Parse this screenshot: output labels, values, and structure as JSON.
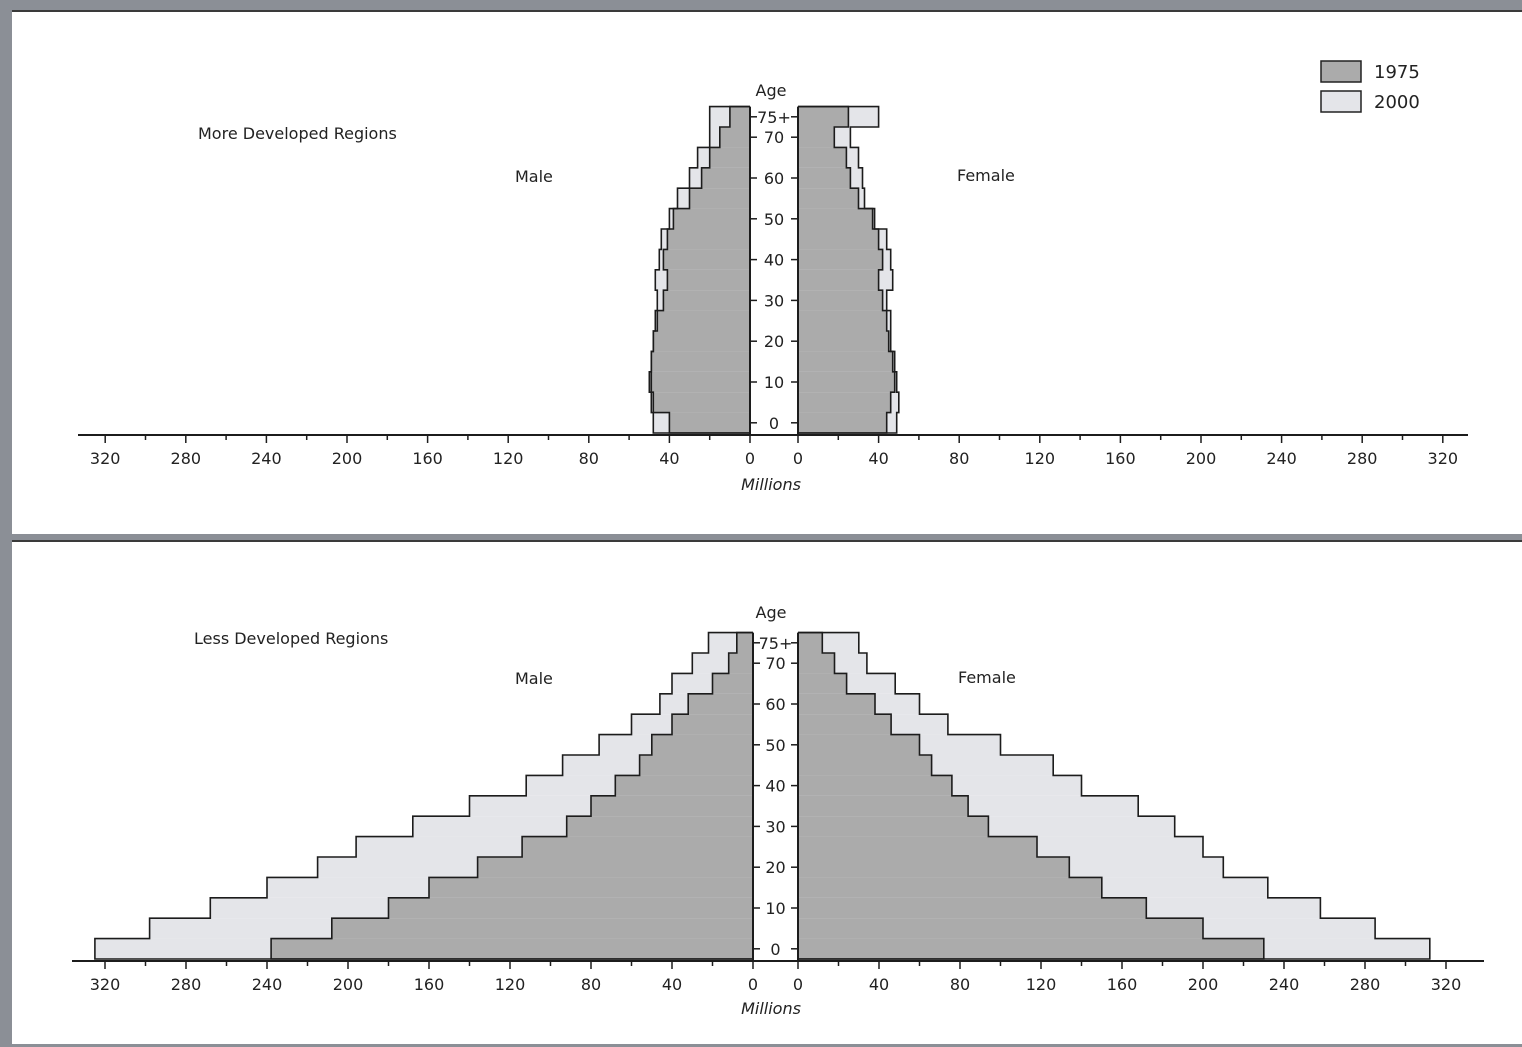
{
  "legend": [
    {
      "label": "1975",
      "color": "#ababab"
    },
    {
      "label": "2000",
      "color": "#e4e5e9"
    }
  ],
  "chart_data": [
    {
      "type": "bar",
      "subtype": "population-pyramid",
      "title": "More Developed Regions",
      "left_label": "Male",
      "right_label": "Female",
      "age_label": "Age",
      "xlabel": "Millions",
      "age_ticks": [
        "0",
        "10",
        "20",
        "30",
        "40",
        "50",
        "60",
        "70",
        "75+"
      ],
      "categories": [
        "0-4",
        "5-9",
        "10-14",
        "15-19",
        "20-24",
        "25-29",
        "30-34",
        "35-39",
        "40-44",
        "45-49",
        "50-54",
        "55-59",
        "60-64",
        "65-69",
        "70-74",
        "75+"
      ],
      "x_ticks": [
        320,
        280,
        240,
        200,
        160,
        120,
        80,
        40,
        0
      ],
      "xlim": [
        0,
        330
      ],
      "series": [
        {
          "name": "1975",
          "color": "#ababab",
          "male": [
            40,
            48,
            50,
            49,
            48,
            46,
            43,
            41,
            43,
            41,
            38,
            30,
            24,
            20,
            15,
            10
          ],
          "female": [
            44,
            46,
            48,
            47,
            45,
            44,
            42,
            40,
            42,
            40,
            37,
            30,
            26,
            24,
            18,
            25
          ]
        },
        {
          "name": "2000",
          "color": "#e4e5e9",
          "male": [
            48,
            49,
            49,
            49,
            48,
            47,
            46,
            47,
            45,
            44,
            40,
            36,
            30,
            26,
            20,
            20
          ],
          "female": [
            49,
            50,
            49,
            48,
            46,
            46,
            44,
            47,
            46,
            44,
            38,
            33,
            32,
            30,
            26,
            40
          ]
        }
      ]
    },
    {
      "type": "bar",
      "subtype": "population-pyramid",
      "title": "Less Developed Regions",
      "left_label": "Male",
      "right_label": "Female",
      "age_label": "Age",
      "xlabel": "Millions",
      "age_ticks": [
        "0",
        "10",
        "20",
        "30",
        "40",
        "50",
        "60",
        "70",
        "75+"
      ],
      "categories": [
        "0-4",
        "5-9",
        "10-14",
        "15-19",
        "20-24",
        "25-29",
        "30-34",
        "35-39",
        "40-44",
        "45-49",
        "50-54",
        "55-59",
        "60-64",
        "65-69",
        "70-74",
        "75+"
      ],
      "x_ticks": [
        320,
        280,
        240,
        200,
        160,
        120,
        80,
        40,
        0
      ],
      "xlim": [
        0,
        330
      ],
      "series": [
        {
          "name": "1975",
          "color": "#ababab",
          "male": [
            238,
            208,
            180,
            160,
            136,
            114,
            92,
            80,
            68,
            56,
            50,
            40,
            32,
            20,
            12,
            8
          ],
          "female": [
            230,
            200,
            172,
            150,
            134,
            118,
            94,
            84,
            76,
            66,
            60,
            46,
            38,
            24,
            18,
            12
          ]
        },
        {
          "name": "2000",
          "color": "#e4e5e9",
          "male": [
            325,
            298,
            268,
            240,
            215,
            196,
            168,
            140,
            112,
            94,
            76,
            60,
            46,
            40,
            30,
            22
          ],
          "female": [
            312,
            285,
            258,
            232,
            210,
            200,
            186,
            168,
            140,
            126,
            100,
            74,
            60,
            48,
            34,
            30
          ]
        }
      ]
    }
  ]
}
